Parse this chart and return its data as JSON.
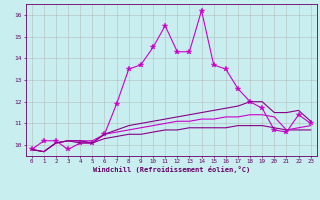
{
  "xlabel": "Windchill (Refroidissement éolien,°C)",
  "background_color": "#c8eef0",
  "grid_color": "#b0b0b0",
  "line_color": "#cc00cc",
  "line_color2": "#880088",
  "xlim": [
    -0.5,
    23.5
  ],
  "ylim": [
    9.5,
    16.5
  ],
  "xticks": [
    0,
    1,
    2,
    3,
    4,
    5,
    6,
    7,
    8,
    9,
    10,
    11,
    12,
    13,
    14,
    15,
    16,
    17,
    18,
    19,
    20,
    21,
    22,
    23
  ],
  "yticks": [
    10,
    11,
    12,
    13,
    14,
    15,
    16
  ],
  "series1_x": [
    0,
    1,
    2,
    3,
    4,
    5,
    6,
    7,
    8,
    9,
    10,
    11,
    12,
    13,
    14,
    15,
    16,
    17,
    18,
    19,
    20,
    21,
    22,
    23
  ],
  "series1_y": [
    9.8,
    10.2,
    10.2,
    9.8,
    10.1,
    10.1,
    10.5,
    11.9,
    13.5,
    13.7,
    14.5,
    15.5,
    14.3,
    14.3,
    16.2,
    13.7,
    13.5,
    12.6,
    12.0,
    11.7,
    10.7,
    10.6,
    11.4,
    11.0
  ],
  "series2_x": [
    0,
    1,
    2,
    3,
    4,
    5,
    6,
    7,
    8,
    9,
    10,
    11,
    12,
    13,
    14,
    15,
    16,
    17,
    18,
    19,
    20,
    21,
    22,
    23
  ],
  "series2_y": [
    9.8,
    9.7,
    10.1,
    10.2,
    10.1,
    10.1,
    10.3,
    10.4,
    10.5,
    10.5,
    10.6,
    10.7,
    10.7,
    10.8,
    10.8,
    10.8,
    10.8,
    10.9,
    10.9,
    10.9,
    10.8,
    10.7,
    10.7,
    10.7
  ],
  "series3_x": [
    0,
    1,
    2,
    3,
    4,
    5,
    6,
    7,
    8,
    9,
    10,
    11,
    12,
    13,
    14,
    15,
    16,
    17,
    18,
    19,
    20,
    21,
    22,
    23
  ],
  "series3_y": [
    9.8,
    9.7,
    10.1,
    10.2,
    10.2,
    10.2,
    10.5,
    10.6,
    10.7,
    10.8,
    10.9,
    11.0,
    11.1,
    11.1,
    11.2,
    11.2,
    11.3,
    11.3,
    11.4,
    11.4,
    11.3,
    10.7,
    10.8,
    10.9
  ],
  "series4_x": [
    0,
    1,
    2,
    3,
    4,
    5,
    6,
    7,
    8,
    9,
    10,
    11,
    12,
    13,
    14,
    15,
    16,
    17,
    18,
    19,
    20,
    21,
    22,
    23
  ],
  "series4_y": [
    9.8,
    9.7,
    10.1,
    10.2,
    10.2,
    10.1,
    10.5,
    10.7,
    10.9,
    11.0,
    11.1,
    11.2,
    11.3,
    11.4,
    11.5,
    11.6,
    11.7,
    11.8,
    12.0,
    12.0,
    11.5,
    11.5,
    11.6,
    11.1
  ]
}
